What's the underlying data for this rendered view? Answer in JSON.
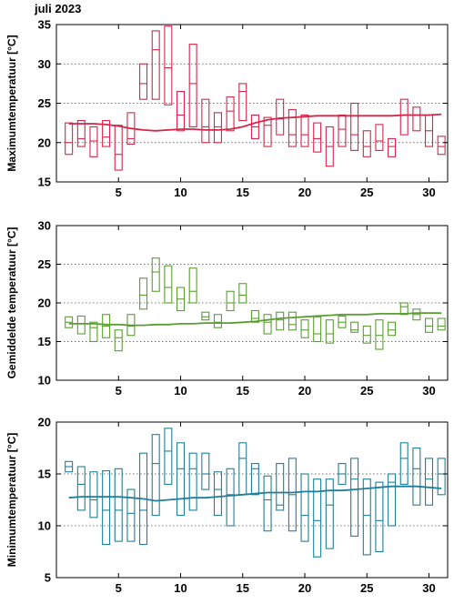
{
  "page_title": "juli 2023",
  "chart_data": [
    {
      "type": "box",
      "ylabel": "Maximumtemperatuur [°C]",
      "ylim": [
        15,
        35
      ],
      "yticks": [
        15,
        20,
        25,
        30,
        35
      ],
      "xlim": [
        0,
        31.5
      ],
      "xticks": [
        5,
        10,
        15,
        20,
        25,
        30
      ],
      "grid": "horizontal dotted",
      "color": "#d4264a",
      "days": [
        1,
        2,
        3,
        4,
        5,
        6,
        7,
        8,
        9,
        10,
        11,
        12,
        13,
        14,
        15,
        16,
        17,
        18,
        19,
        20,
        21,
        22,
        23,
        24,
        25,
        26,
        27,
        28,
        29,
        30,
        31
      ],
      "q_low": [
        18.5,
        19.5,
        18.2,
        19.5,
        16.5,
        19.8,
        25.5,
        25.5,
        24.8,
        21.5,
        22.0,
        20.0,
        20.0,
        21.5,
        22.8,
        20.5,
        19.5,
        21.0,
        19.5,
        19.5,
        18.8,
        17.0,
        19.5,
        19.0,
        18.2,
        19.0,
        18.2,
        21.0,
        21.5,
        19.5,
        18.5
      ],
      "median": [
        20.0,
        20.5,
        20.2,
        20.7,
        18.5,
        20.5,
        27.5,
        31.8,
        29.5,
        23.5,
        27.5,
        22.0,
        22.0,
        24.0,
        26.5,
        22.0,
        22.2,
        23.0,
        21.0,
        21.0,
        20.5,
        19.5,
        21.7,
        21.0,
        19.5,
        20.2,
        19.5,
        23.5,
        23.5,
        21.5,
        19.5
      ],
      "q_high": [
        22.5,
        22.8,
        22.0,
        22.8,
        22.2,
        23.8,
        30.0,
        34.2,
        34.8,
        26.5,
        32.5,
        25.5,
        23.8,
        25.8,
        27.5,
        23.5,
        23.2,
        25.5,
        24.2,
        23.5,
        22.5,
        22.0,
        23.5,
        25.0,
        21.5,
        22.3,
        20.5,
        25.5,
        24.5,
        23.5,
        20.8
      ],
      "normal": [
        22.4,
        22.4,
        22.4,
        22.3,
        22.1,
        21.8,
        21.6,
        21.5,
        21.6,
        21.7,
        21.7,
        21.6,
        21.6,
        21.7,
        22.0,
        22.5,
        22.9,
        23.1,
        23.2,
        23.3,
        23.4,
        23.4,
        23.4,
        23.4,
        23.4,
        23.4,
        23.4,
        23.5,
        23.5,
        23.5,
        23.6
      ]
    },
    {
      "type": "box",
      "ylabel": "Gemiddelde temperatuur [°C]",
      "ylim": [
        10,
        30
      ],
      "yticks": [
        10,
        15,
        20,
        25,
        30
      ],
      "xlim": [
        0,
        31.5
      ],
      "xticks": [
        5,
        10,
        15,
        20,
        25,
        30
      ],
      "grid": "horizontal dotted",
      "color": "#5a9e32",
      "days": [
        1,
        2,
        3,
        4,
        5,
        6,
        7,
        8,
        9,
        10,
        11,
        12,
        13,
        14,
        15,
        16,
        17,
        18,
        19,
        20,
        21,
        22,
        23,
        24,
        25,
        26,
        27,
        28,
        29,
        30,
        31
      ],
      "q_low": [
        16.8,
        16.0,
        15.0,
        15.5,
        13.8,
        15.8,
        19.2,
        21.5,
        20.0,
        19.0,
        20.0,
        17.8,
        16.8,
        19.0,
        20.0,
        17.5,
        16.0,
        16.5,
        16.5,
        15.5,
        15.0,
        14.8,
        16.8,
        16.2,
        14.8,
        14.0,
        15.8,
        18.5,
        17.8,
        16.2,
        16.5
      ],
      "median": [
        17.5,
        17.3,
        16.8,
        17.0,
        15.5,
        17.0,
        21.0,
        24.0,
        22.0,
        20.5,
        21.5,
        18.2,
        17.5,
        20.0,
        21.0,
        18.0,
        17.5,
        17.8,
        17.2,
        16.5,
        16.0,
        16.0,
        17.5,
        16.5,
        15.8,
        15.8,
        16.5,
        19.5,
        18.5,
        17.0,
        17.0
      ],
      "q_high": [
        18.2,
        18.3,
        17.5,
        18.5,
        16.5,
        18.5,
        23.2,
        25.8,
        24.8,
        22.0,
        24.5,
        18.8,
        18.5,
        21.5,
        22.5,
        19.0,
        18.5,
        18.8,
        18.8,
        17.8,
        18.2,
        17.8,
        18.3,
        17.5,
        17.0,
        17.8,
        17.5,
        20.0,
        19.2,
        18.0,
        18.0
      ],
      "normal": [
        17.3,
        17.3,
        17.3,
        17.2,
        17.2,
        17.1,
        17.1,
        17.2,
        17.2,
        17.3,
        17.3,
        17.4,
        17.4,
        17.4,
        17.5,
        17.6,
        17.8,
        18.0,
        18.1,
        18.2,
        18.3,
        18.4,
        18.5,
        18.5,
        18.5,
        18.6,
        18.6,
        18.6,
        18.7,
        18.7,
        18.7
      ]
    },
    {
      "type": "box",
      "ylabel": "Minimumtemperatuur [°C]",
      "ylim": [
        5,
        20
      ],
      "yticks": [
        5,
        10,
        15,
        20
      ],
      "xlim": [
        0,
        31.5
      ],
      "xticks": [
        5,
        10,
        15,
        20,
        25,
        30
      ],
      "grid": "horizontal dotted",
      "color": "#1f7f99",
      "days": [
        1,
        2,
        3,
        4,
        5,
        6,
        7,
        8,
        9,
        10,
        11,
        12,
        13,
        14,
        15,
        16,
        17,
        18,
        19,
        20,
        21,
        22,
        23,
        24,
        25,
        26,
        27,
        28,
        29,
        30,
        31
      ],
      "q_low": [
        15.2,
        11.5,
        10.8,
        8.2,
        8.5,
        8.5,
        8.2,
        11.0,
        14.0,
        11.0,
        11.5,
        13.5,
        11.0,
        10.0,
        13.0,
        13.0,
        9.5,
        11.5,
        9.5,
        8.5,
        7.0,
        7.8,
        14.0,
        9.0,
        7.2,
        7.5,
        10.0,
        14.0,
        12.0,
        12.0,
        13.0
      ],
      "median": [
        15.7,
        14.0,
        12.5,
        11.5,
        11.5,
        11.2,
        11.5,
        16.0,
        17.2,
        15.5,
        15.5,
        15.0,
        13.5,
        13.0,
        16.5,
        15.5,
        12.5,
        12.0,
        13.0,
        11.0,
        10.5,
        12.0,
        15.0,
        14.5,
        11.0,
        10.5,
        14.2,
        16.5,
        15.5,
        14.5,
        15.0
      ],
      "q_high": [
        16.2,
        15.7,
        15.2,
        15.3,
        15.5,
        13.5,
        17.0,
        18.8,
        19.4,
        18.0,
        17.0,
        17.0,
        15.2,
        15.5,
        18.0,
        16.0,
        14.8,
        16.0,
        16.5,
        15.0,
        14.5,
        14.5,
        16.0,
        16.5,
        14.5,
        14.2,
        15.0,
        18.0,
        17.5,
        16.5,
        16.5
      ],
      "normal": [
        12.7,
        12.8,
        12.8,
        12.8,
        12.8,
        12.7,
        12.6,
        12.4,
        12.5,
        12.6,
        12.7,
        12.7,
        12.8,
        12.9,
        13.0,
        13.1,
        13.2,
        13.2,
        13.2,
        13.3,
        13.3,
        13.4,
        13.4,
        13.5,
        13.6,
        13.7,
        13.8,
        13.8,
        13.8,
        13.7,
        13.6
      ]
    }
  ]
}
